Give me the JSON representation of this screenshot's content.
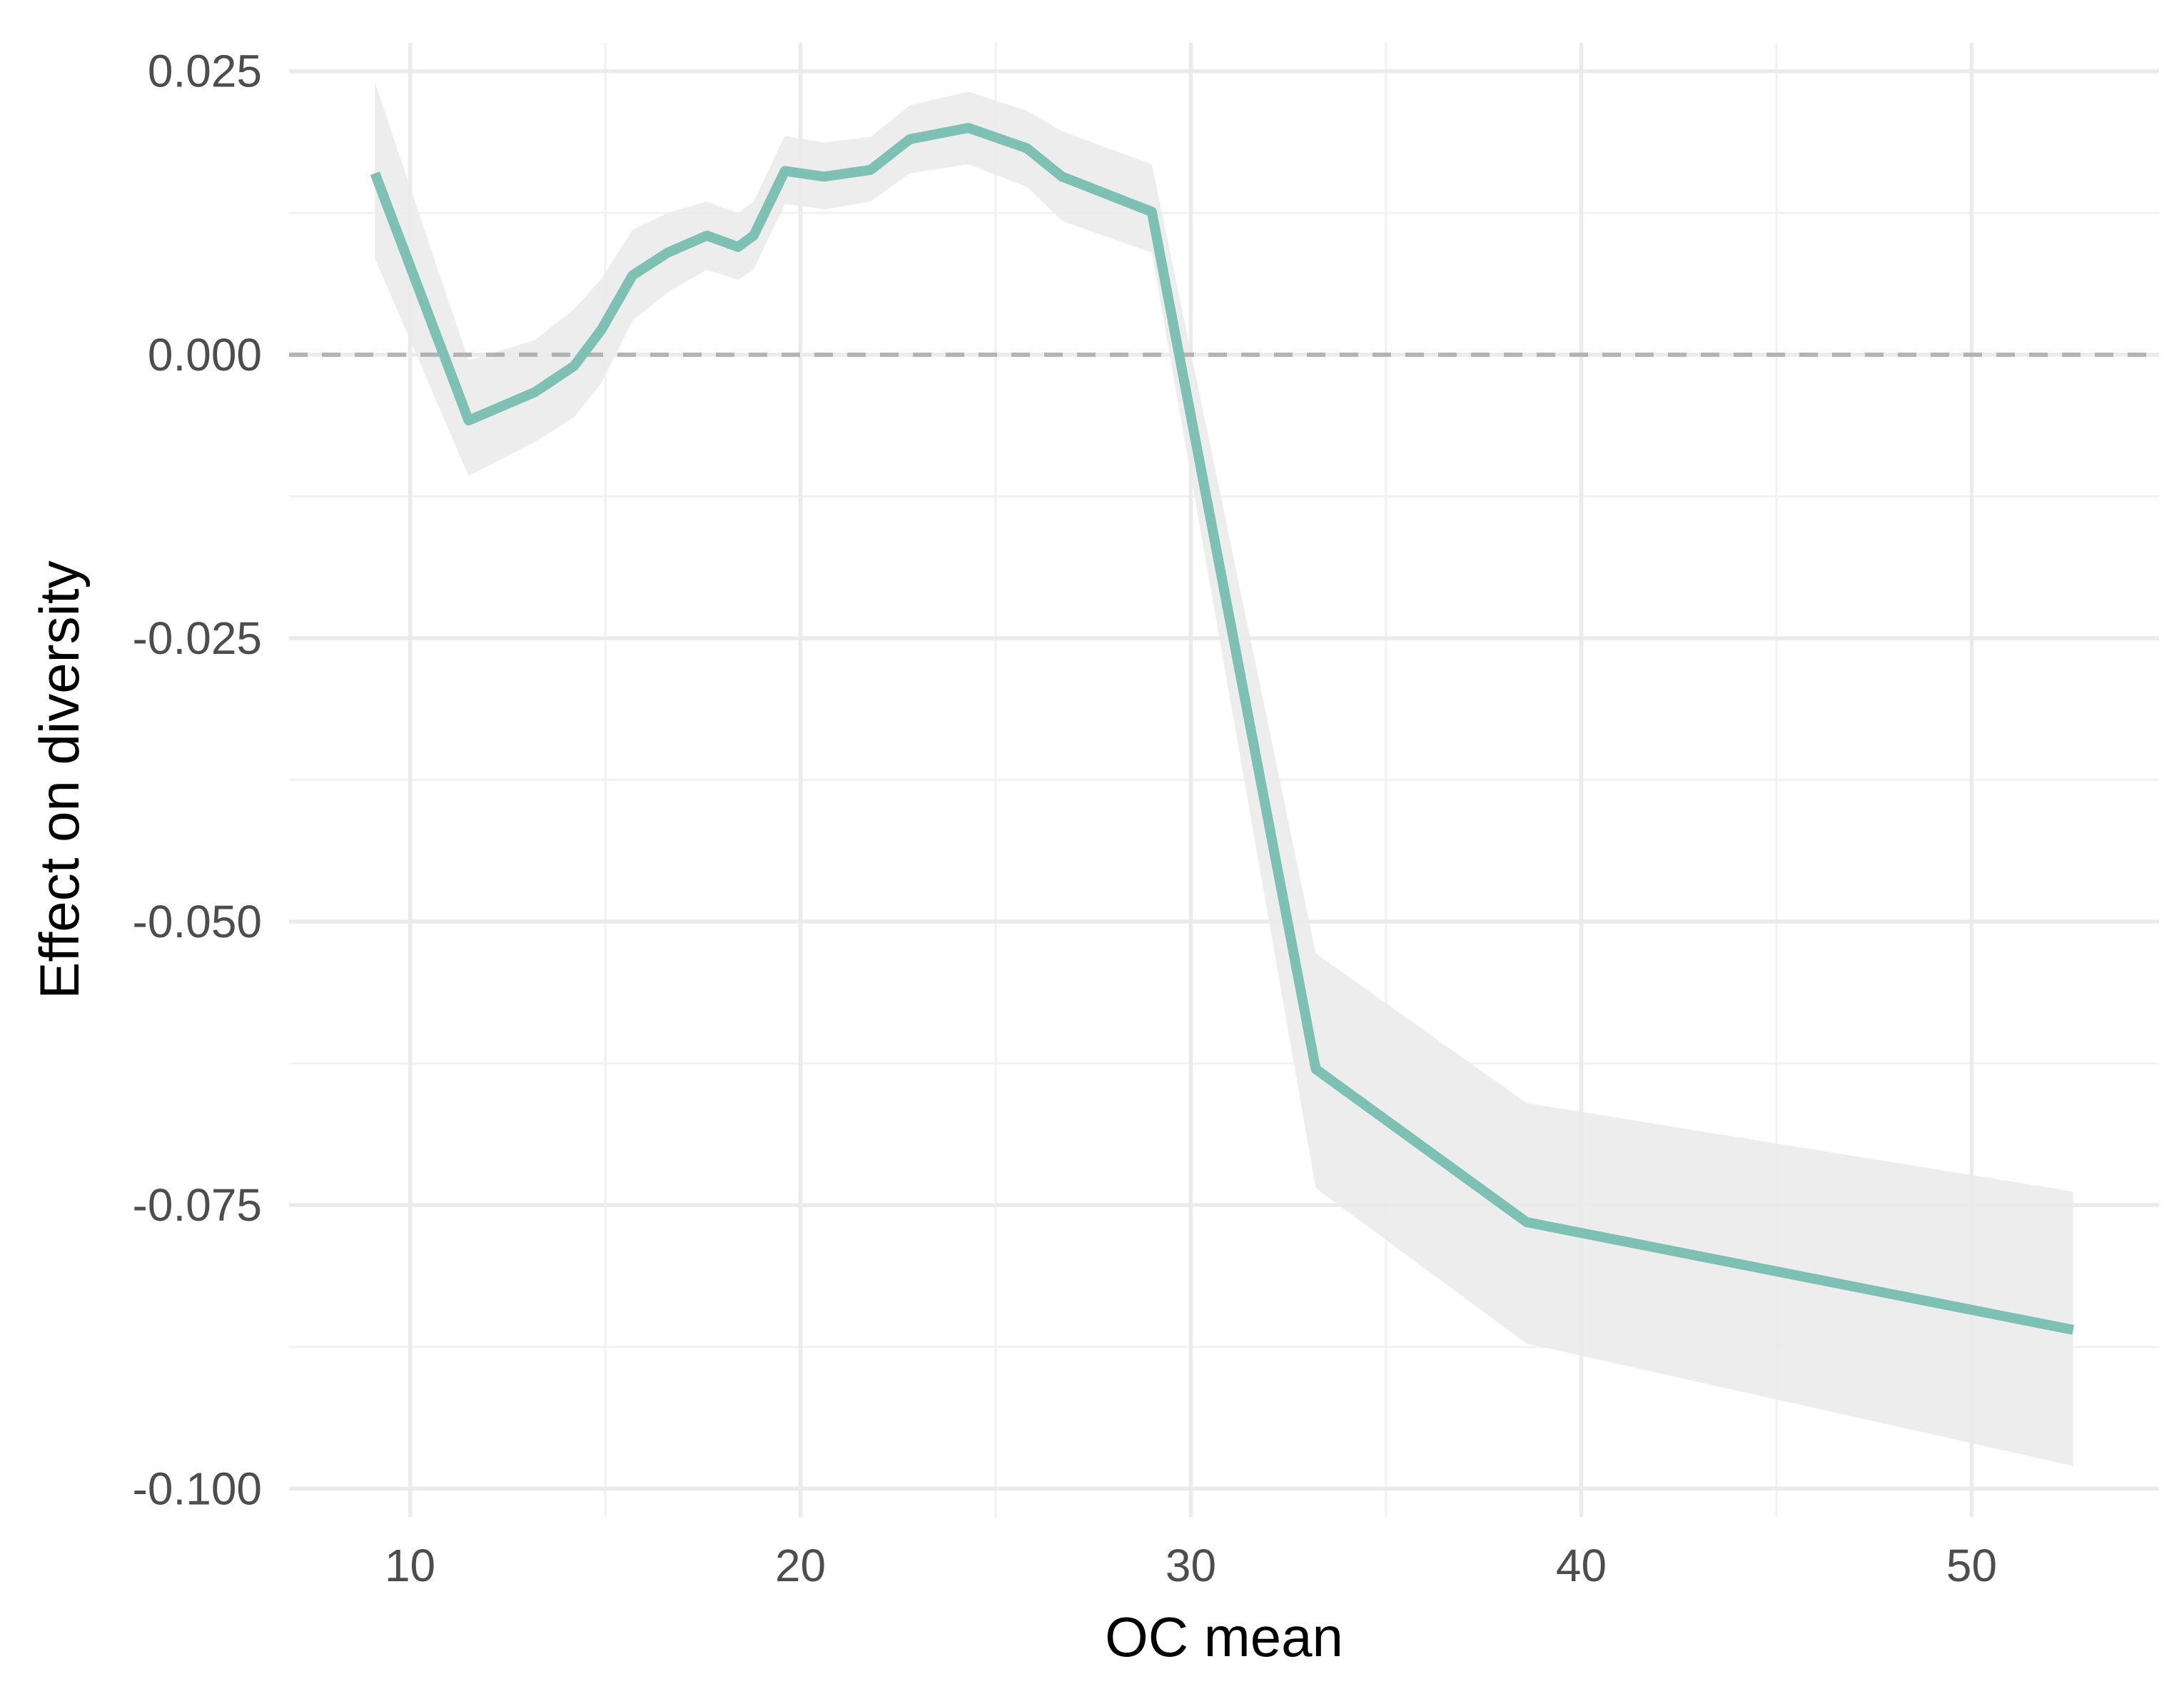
{
  "chart_data": {
    "type": "line",
    "title": "",
    "xlabel": "OC mean",
    "ylabel": "Effect on diversity",
    "xlim": [
      6.9,
      54.8
    ],
    "ylim": [
      -0.1025,
      0.0275
    ],
    "x_ticks": [
      10,
      20,
      30,
      40,
      50
    ],
    "x_tick_labels": [
      "10",
      "20",
      "30",
      "40",
      "50"
    ],
    "y_ticks": [
      0.025,
      0.0,
      -0.025,
      -0.05,
      -0.075,
      -0.1
    ],
    "y_tick_labels": [
      "0.025",
      "0.000",
      "-0.025",
      "-0.050",
      "-0.075",
      "-0.100"
    ],
    "grid": true,
    "legend": "none",
    "reference_line": {
      "y": 0.0,
      "style": "dashed",
      "color": "#b3b3b3"
    },
    "series": [
      {
        "x": [
          9.1,
          11.5,
          13.2,
          14.2,
          14.9,
          15.7,
          16.6,
          17.6,
          18.4,
          18.8,
          19.6,
          20.6,
          21.8,
          22.8,
          24.3,
          25.8,
          26.7,
          29.0,
          33.2,
          38.6,
          52.6
        ],
        "y": [
          0.016,
          -0.0058,
          -0.0033,
          -0.001,
          0.0022,
          0.007,
          0.009,
          0.0105,
          0.0095,
          0.0105,
          0.0162,
          0.0157,
          0.0163,
          0.019,
          0.02,
          0.0182,
          0.0157,
          0.0126,
          -0.063,
          -0.0765,
          -0.086
        ],
        "lower": [
          0.0085,
          -0.0107,
          -0.0077,
          -0.0055,
          -0.0025,
          0.003,
          0.0055,
          0.0075,
          0.0066,
          0.0075,
          0.0133,
          0.0128,
          0.0135,
          0.016,
          0.0168,
          0.0148,
          0.0118,
          0.009,
          -0.0735,
          -0.0872,
          -0.098
        ],
        "upper": [
          0.024,
          -0.0005,
          0.0013,
          0.004,
          0.0067,
          0.011,
          0.0125,
          0.0135,
          0.0125,
          0.0135,
          0.0193,
          0.0187,
          0.0192,
          0.022,
          0.0232,
          0.0215,
          0.0197,
          0.0168,
          -0.0528,
          -0.066,
          -0.0738
        ]
      }
    ],
    "colors": {
      "line": "#7dc0b4",
      "ribbon": "#ebebeb",
      "grid_major": "#ebebeb",
      "grid_minor": "#f2f2f2",
      "reference": "#b3b3b3"
    }
  }
}
